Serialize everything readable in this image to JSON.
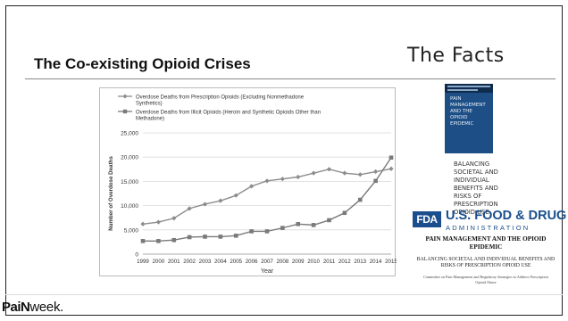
{
  "slide": {
    "title": "The Co-existing Opioid Crises",
    "heading_right": "The Facts",
    "logo": {
      "part1": "PaiN",
      "part2": "week."
    }
  },
  "report": {
    "cover_title": "PAIN MANAGEMENT AND THE OPIOID EPIDEMIC",
    "cover_subtitle": "BALANCING SOCIETAL AND INDIVIDUAL BENEFITS AND RISKS OF PRESCRIPTION OPIOID USE",
    "fda_badge": "FDA",
    "fda_name": "U.S. FOOD & DRUG",
    "fda_admin": "ADMINISTRATION",
    "title": "PAIN MANAGEMENT AND THE OPIOID EPIDEMIC",
    "subtitle": "BALANCING SOCIETAL AND INDIVIDUAL BENEFITS AND RISKS OF PRESCRIPTION OPIOID USE",
    "footnote": "Committee on Pain Management and Regulatory Strategies to Address Prescription Opioid Abuse"
  },
  "chart_data": {
    "type": "line",
    "x": [
      1999,
      2000,
      2001,
      2002,
      2003,
      2004,
      2005,
      2006,
      2007,
      2008,
      2009,
      2010,
      2011,
      2012,
      2013,
      2014,
      2015
    ],
    "x_tick_labels": [
      "1999",
      "2000",
      "2001",
      "2002",
      "2003",
      "2004",
      "2005",
      "2006",
      "2007",
      "2008",
      "2009",
      "2010",
      "2011",
      "2012",
      "2013",
      "2014",
      "2015"
    ],
    "xlabel": "Year",
    "ylabel": "Number of Overdose Deaths",
    "ylim": [
      0,
      25000
    ],
    "y_ticks": [
      0,
      5000,
      10000,
      15000,
      20000,
      25000
    ],
    "y_tick_labels": [
      "0",
      "5,000",
      "10,000",
      "15,000",
      "20,000",
      "25,000"
    ],
    "grid": true,
    "legend": "top",
    "series": [
      {
        "name": "Overdose Deaths from Prescription Opioids (Excluding Nonmethadone Synthetics)",
        "marker": "diamond",
        "color": "#8c8c8c",
        "values": [
          6200,
          6600,
          7400,
          9400,
          10300,
          11000,
          12100,
          14000,
          15100,
          15500,
          15900,
          16700,
          17500,
          16700,
          16400,
          17000,
          17600
        ]
      },
      {
        "name": "Overdose Deaths from Illicit Opioids (Heroin and Synthetic Opioids Other than Methadone)",
        "marker": "square",
        "color": "#7a7a7a",
        "values": [
          2700,
          2700,
          2900,
          3500,
          3600,
          3600,
          3800,
          4700,
          4700,
          5400,
          6200,
          6000,
          7000,
          8500,
          11200,
          15100,
          19900
        ]
      }
    ]
  }
}
